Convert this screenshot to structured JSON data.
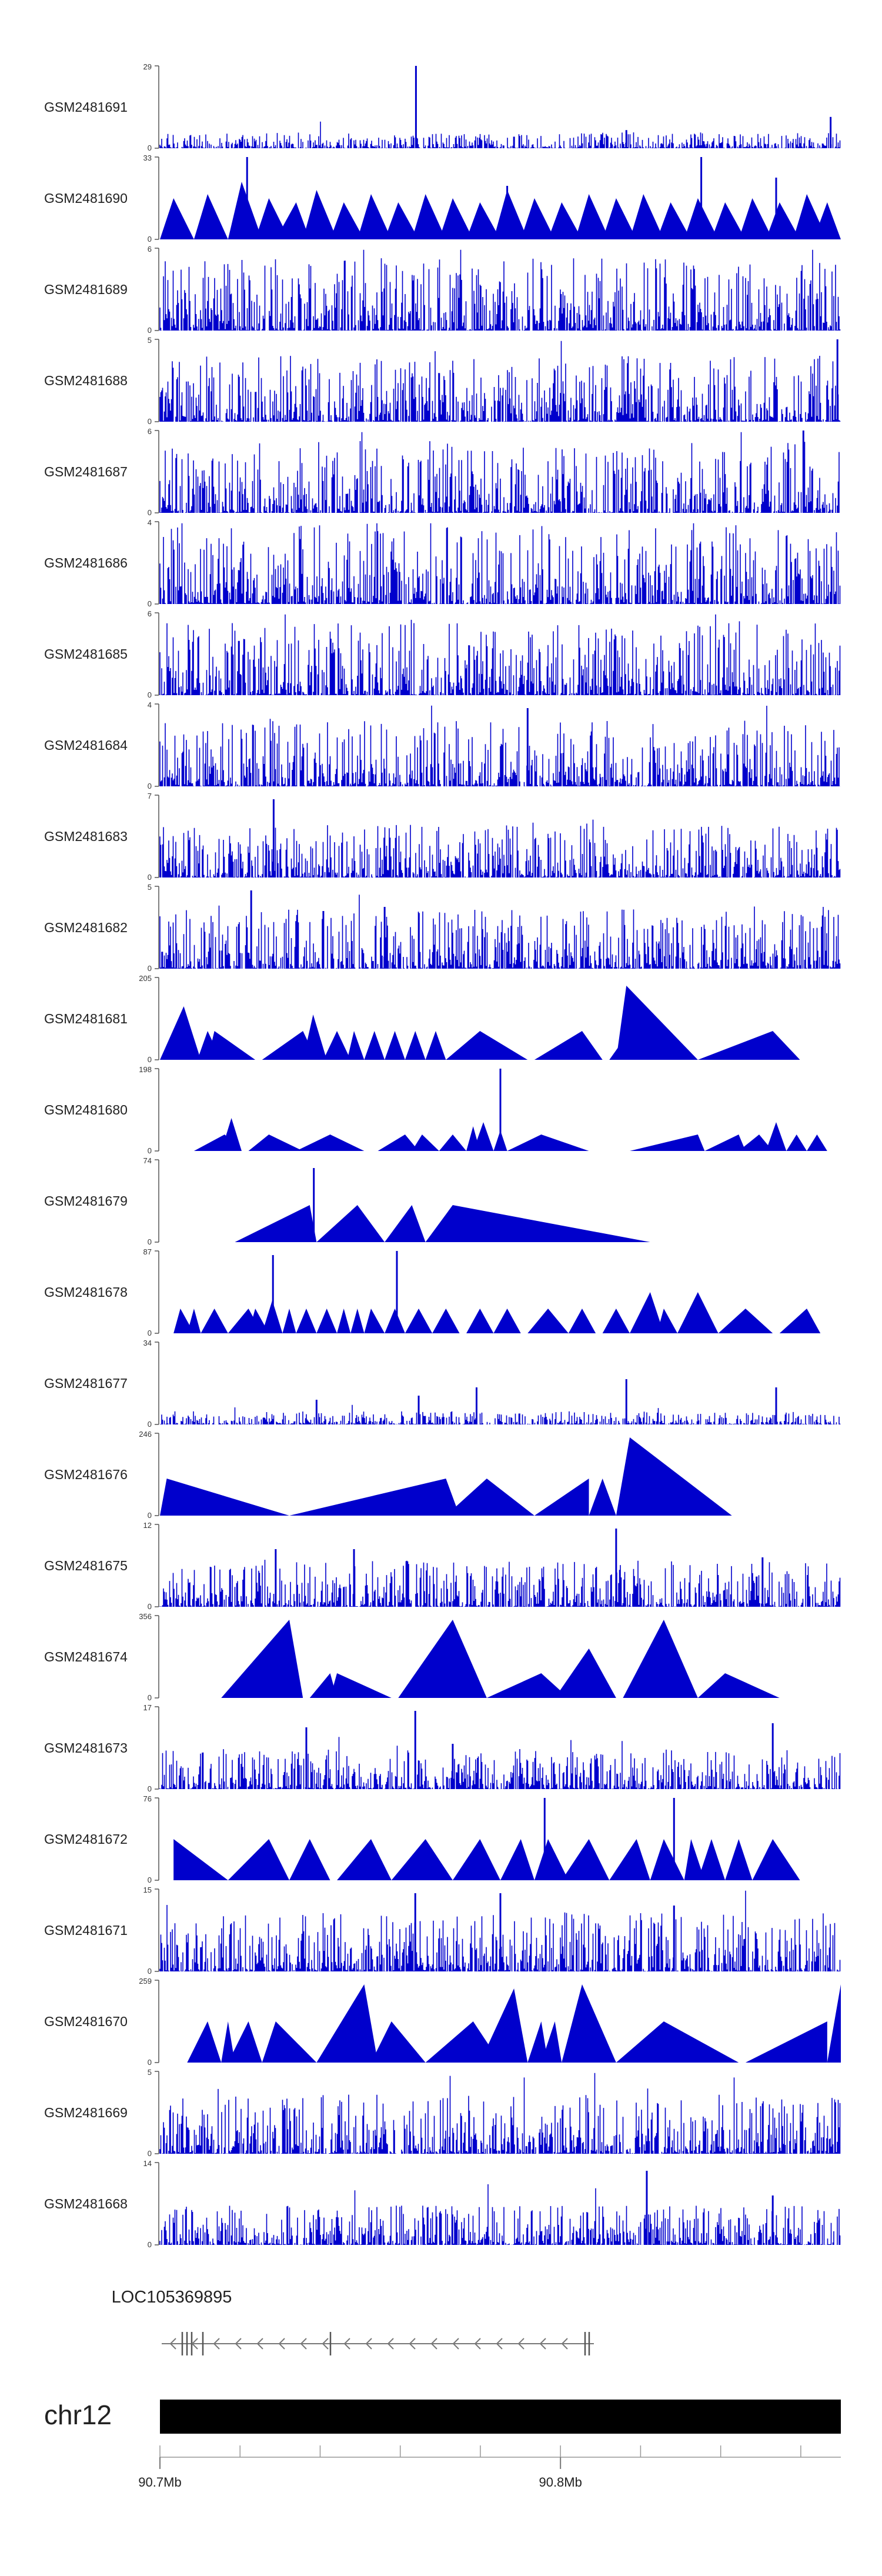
{
  "chart_data": {
    "type": "area",
    "title": "",
    "xlabel": "",
    "ylabel": "",
    "xlim_mb": [
      90.7,
      90.87
    ],
    "tracks": [
      {
        "name": "GSM2481691",
        "ymax": "29",
        "ymin": "0",
        "style": "dense",
        "peak_frac": 0.12,
        "spikes": [
          {
            "x": 0.376,
            "v": 1.0
          },
          {
            "x": 0.685,
            "v": 0.22
          },
          {
            "x": 0.985,
            "v": 0.38
          },
          {
            "x": 0.52,
            "v": 0.14
          }
        ]
      },
      {
        "name": "GSM2481690",
        "ymax": "33",
        "ymin": "0",
        "style": "tri",
        "peaks": [
          [
            0.0,
            0.02,
            0.05,
            0.5
          ],
          [
            0.05,
            0.07,
            0.1,
            0.55
          ],
          [
            0.1,
            0.12,
            0.15,
            0.7
          ],
          [
            0.14,
            0.16,
            0.19,
            0.5
          ],
          [
            0.17,
            0.2,
            0.22,
            0.45
          ],
          [
            0.21,
            0.23,
            0.26,
            0.6
          ],
          [
            0.25,
            0.27,
            0.3,
            0.45
          ],
          [
            0.29,
            0.31,
            0.34,
            0.55
          ],
          [
            0.33,
            0.35,
            0.38,
            0.45
          ],
          [
            0.37,
            0.39,
            0.42,
            0.55
          ],
          [
            0.41,
            0.43,
            0.46,
            0.5
          ],
          [
            0.45,
            0.47,
            0.5,
            0.45
          ],
          [
            0.49,
            0.51,
            0.54,
            0.6
          ],
          [
            0.53,
            0.55,
            0.58,
            0.5
          ],
          [
            0.57,
            0.59,
            0.62,
            0.45
          ],
          [
            0.61,
            0.63,
            0.66,
            0.55
          ],
          [
            0.65,
            0.67,
            0.7,
            0.5
          ],
          [
            0.69,
            0.71,
            0.74,
            0.55
          ],
          [
            0.73,
            0.75,
            0.78,
            0.45
          ],
          [
            0.77,
            0.79,
            0.82,
            0.5
          ],
          [
            0.81,
            0.83,
            0.86,
            0.45
          ],
          [
            0.85,
            0.87,
            0.9,
            0.5
          ],
          [
            0.89,
            0.91,
            0.94,
            0.45
          ],
          [
            0.93,
            0.95,
            0.98,
            0.55
          ],
          [
            0.96,
            0.98,
            1.0,
            0.45
          ]
        ],
        "spikes": [
          {
            "x": 0.128,
            "v": 1.0
          },
          {
            "x": 0.51,
            "v": 0.65
          },
          {
            "x": 0.795,
            "v": 1.0
          },
          {
            "x": 0.905,
            "v": 0.75
          }
        ]
      },
      {
        "name": "GSM2481689",
        "ymax": "6",
        "ymin": "0",
        "style": "dense",
        "peak_frac": 0.55,
        "spikes": []
      },
      {
        "name": "GSM2481688",
        "ymax": "5",
        "ymin": "0",
        "style": "dense",
        "peak_frac": 0.5,
        "spikes": [
          {
            "x": 0.995,
            "v": 1.0
          }
        ]
      },
      {
        "name": "GSM2481687",
        "ymax": "6",
        "ymin": "0",
        "style": "dense",
        "peak_frac": 0.55,
        "spikes": [
          {
            "x": 0.945,
            "v": 1.0
          }
        ]
      },
      {
        "name": "GSM2481686",
        "ymax": "4",
        "ymin": "0",
        "style": "dense",
        "peak_frac": 0.6,
        "spikes": []
      },
      {
        "name": "GSM2481685",
        "ymax": "6",
        "ymin": "0",
        "style": "dense",
        "peak_frac": 0.55,
        "spikes": []
      },
      {
        "name": "GSM2481684",
        "ymax": "4",
        "ymin": "0",
        "style": "dense",
        "peak_frac": 0.5,
        "spikes": [
          {
            "x": 0.54,
            "v": 0.95
          }
        ]
      },
      {
        "name": "GSM2481683",
        "ymax": "7",
        "ymin": "0",
        "style": "dense",
        "peak_frac": 0.4,
        "spikes": [
          {
            "x": 0.167,
            "v": 0.95
          }
        ]
      },
      {
        "name": "GSM2481682",
        "ymax": "5",
        "ymin": "0",
        "style": "dense",
        "peak_frac": 0.45,
        "spikes": [
          {
            "x": 0.134,
            "v": 0.95
          },
          {
            "x": 0.24,
            "v": 0.7
          },
          {
            "x": 0.33,
            "v": 0.75
          }
        ]
      },
      {
        "name": "GSM2481681",
        "ymax": "205",
        "ymin": "0",
        "style": "tri",
        "peaks": [
          [
            0.0,
            0.035,
            0.06,
            0.65
          ],
          [
            0.055,
            0.07,
            0.09,
            0.35
          ],
          [
            0.07,
            0.08,
            0.14,
            0.35
          ],
          [
            0.15,
            0.21,
            0.23,
            0.35
          ],
          [
            0.21,
            0.225,
            0.245,
            0.55
          ],
          [
            0.24,
            0.26,
            0.28,
            0.35
          ],
          [
            0.275,
            0.285,
            0.3,
            0.35
          ],
          [
            0.3,
            0.315,
            0.33,
            0.35
          ],
          [
            0.33,
            0.345,
            0.36,
            0.35
          ],
          [
            0.36,
            0.375,
            0.39,
            0.35
          ],
          [
            0.39,
            0.405,
            0.42,
            0.35
          ],
          [
            0.42,
            0.47,
            0.54,
            0.35
          ],
          [
            0.55,
            0.62,
            0.65,
            0.35
          ],
          [
            0.66,
            0.69,
            0.72,
            0.35
          ],
          [
            0.67,
            0.685,
            0.79,
            0.9
          ],
          [
            0.79,
            0.9,
            0.94,
            0.35
          ]
        ],
        "spikes": []
      },
      {
        "name": "GSM2481680",
        "ymax": "198",
        "ymin": "0",
        "style": "tri",
        "peaks": [
          [
            0.05,
            0.095,
            0.12,
            0.2
          ],
          [
            0.09,
            0.105,
            0.12,
            0.4
          ],
          [
            0.13,
            0.16,
            0.21,
            0.2
          ],
          [
            0.2,
            0.25,
            0.3,
            0.2
          ],
          [
            0.32,
            0.36,
            0.38,
            0.2
          ],
          [
            0.37,
            0.385,
            0.41,
            0.2
          ],
          [
            0.41,
            0.43,
            0.45,
            0.2
          ],
          [
            0.45,
            0.46,
            0.47,
            0.3
          ],
          [
            0.46,
            0.475,
            0.49,
            0.35
          ],
          [
            0.49,
            0.5,
            0.51,
            0.25
          ],
          [
            0.51,
            0.56,
            0.63,
            0.2
          ],
          [
            0.69,
            0.79,
            0.8,
            0.2
          ],
          [
            0.8,
            0.85,
            0.86,
            0.2
          ],
          [
            0.85,
            0.88,
            0.9,
            0.2
          ],
          [
            0.89,
            0.905,
            0.92,
            0.35
          ],
          [
            0.92,
            0.935,
            0.95,
            0.2
          ],
          [
            0.95,
            0.965,
            0.98,
            0.2
          ]
        ],
        "spikes": [
          {
            "x": 0.5,
            "v": 1.0
          }
        ]
      },
      {
        "name": "GSM2481679",
        "ymax": "74",
        "ymin": "0",
        "style": "tri",
        "peaks": [
          [
            0.11,
            0.22,
            0.23,
            0.45
          ],
          [
            0.23,
            0.29,
            0.33,
            0.45
          ],
          [
            0.33,
            0.37,
            0.39,
            0.45
          ],
          [
            0.39,
            0.43,
            0.72,
            0.45
          ]
        ],
        "spikes": [
          {
            "x": 0.226,
            "v": 0.9
          }
        ]
      },
      {
        "name": "GSM2481678",
        "ymax": "87",
        "ymin": "0",
        "style": "tri",
        "peaks": [
          [
            0.02,
            0.03,
            0.05,
            0.3
          ],
          [
            0.04,
            0.05,
            0.06,
            0.3
          ],
          [
            0.06,
            0.08,
            0.1,
            0.3
          ],
          [
            0.1,
            0.13,
            0.15,
            0.3
          ],
          [
            0.13,
            0.14,
            0.16,
            0.3
          ],
          [
            0.15,
            0.165,
            0.18,
            0.4
          ],
          [
            0.18,
            0.19,
            0.2,
            0.3
          ],
          [
            0.2,
            0.215,
            0.23,
            0.3
          ],
          [
            0.23,
            0.245,
            0.26,
            0.3
          ],
          [
            0.26,
            0.27,
            0.28,
            0.3
          ],
          [
            0.28,
            0.29,
            0.3,
            0.3
          ],
          [
            0.3,
            0.31,
            0.33,
            0.3
          ],
          [
            0.33,
            0.345,
            0.36,
            0.3
          ],
          [
            0.36,
            0.38,
            0.4,
            0.3
          ],
          [
            0.4,
            0.42,
            0.44,
            0.3
          ],
          [
            0.45,
            0.47,
            0.49,
            0.3
          ],
          [
            0.49,
            0.51,
            0.53,
            0.3
          ],
          [
            0.54,
            0.57,
            0.6,
            0.3
          ],
          [
            0.6,
            0.62,
            0.64,
            0.3
          ],
          [
            0.65,
            0.67,
            0.69,
            0.3
          ],
          [
            0.69,
            0.72,
            0.74,
            0.5
          ],
          [
            0.73,
            0.74,
            0.76,
            0.3
          ],
          [
            0.76,
            0.79,
            0.82,
            0.5
          ],
          [
            0.82,
            0.86,
            0.9,
            0.3
          ],
          [
            0.91,
            0.95,
            0.97,
            0.3
          ]
        ],
        "spikes": [
          {
            "x": 0.166,
            "v": 0.95
          },
          {
            "x": 0.348,
            "v": 1.0
          }
        ]
      },
      {
        "name": "GSM2481677",
        "ymax": "34",
        "ymin": "0",
        "style": "dense",
        "peak_frac": 0.1,
        "spikes": [
          {
            "x": 0.23,
            "v": 0.3
          },
          {
            "x": 0.38,
            "v": 0.35
          },
          {
            "x": 0.465,
            "v": 0.45
          },
          {
            "x": 0.685,
            "v": 0.55
          },
          {
            "x": 0.905,
            "v": 0.45
          }
        ]
      },
      {
        "name": "GSM2481676",
        "ymax": "246",
        "ymin": "0",
        "style": "tri",
        "peaks": [
          [
            0.0,
            0.01,
            0.19,
            0.45
          ],
          [
            0.19,
            0.42,
            0.44,
            0.45
          ],
          [
            0.42,
            0.48,
            0.55,
            0.45
          ],
          [
            0.55,
            0.63,
            0.63,
            0.45
          ],
          [
            0.63,
            0.65,
            0.67,
            0.45
          ],
          [
            0.67,
            0.69,
            0.84,
            0.95
          ]
        ],
        "spikes": []
      },
      {
        "name": "GSM2481675",
        "ymax": "12",
        "ymin": "0",
        "style": "dense",
        "peak_frac": 0.35,
        "spikes": [
          {
            "x": 0.67,
            "v": 0.95
          },
          {
            "x": 0.17,
            "v": 0.7
          },
          {
            "x": 0.285,
            "v": 0.7
          },
          {
            "x": 0.885,
            "v": 0.6
          }
        ]
      },
      {
        "name": "GSM2481674",
        "ymax": "356",
        "ymin": "0",
        "style": "tri",
        "peaks": [
          [
            0.09,
            0.19,
            0.21,
            0.95
          ],
          [
            0.22,
            0.25,
            0.26,
            0.3
          ],
          [
            0.25,
            0.26,
            0.34,
            0.3
          ],
          [
            0.35,
            0.43,
            0.48,
            0.95
          ],
          [
            0.48,
            0.56,
            0.6,
            0.3
          ],
          [
            0.58,
            0.63,
            0.67,
            0.6
          ],
          [
            0.68,
            0.74,
            0.79,
            0.95
          ],
          [
            0.79,
            0.83,
            0.91,
            0.3
          ]
        ],
        "spikes": []
      },
      {
        "name": "GSM2481673",
        "ymax": "17",
        "ymin": "0",
        "style": "dense",
        "peak_frac": 0.3,
        "spikes": [
          {
            "x": 0.215,
            "v": 0.75
          },
          {
            "x": 0.375,
            "v": 0.95
          },
          {
            "x": 0.43,
            "v": 0.55
          },
          {
            "x": 0.9,
            "v": 0.8
          }
        ]
      },
      {
        "name": "GSM2481672",
        "ymax": "76",
        "ymin": "0",
        "style": "tri",
        "peaks": [
          [
            0.02,
            0.02,
            0.1,
            0.5
          ],
          [
            0.1,
            0.16,
            0.19,
            0.5
          ],
          [
            0.19,
            0.22,
            0.25,
            0.5
          ],
          [
            0.26,
            0.31,
            0.34,
            0.5
          ],
          [
            0.34,
            0.39,
            0.43,
            0.5
          ],
          [
            0.43,
            0.47,
            0.5,
            0.5
          ],
          [
            0.5,
            0.53,
            0.55,
            0.5
          ],
          [
            0.55,
            0.57,
            0.6,
            0.5
          ],
          [
            0.59,
            0.63,
            0.66,
            0.5
          ],
          [
            0.66,
            0.7,
            0.72,
            0.5
          ],
          [
            0.72,
            0.74,
            0.77,
            0.5
          ],
          [
            0.77,
            0.78,
            0.8,
            0.5
          ],
          [
            0.79,
            0.81,
            0.83,
            0.5
          ],
          [
            0.83,
            0.85,
            0.87,
            0.5
          ],
          [
            0.87,
            0.9,
            0.94,
            0.5
          ]
        ],
        "spikes": [
          {
            "x": 0.565,
            "v": 1.0
          },
          {
            "x": 0.755,
            "v": 1.0
          }
        ]
      },
      {
        "name": "GSM2481671",
        "ymax": "15",
        "ymin": "0",
        "style": "dense",
        "peak_frac": 0.45,
        "spikes": [
          {
            "x": 0.375,
            "v": 0.95
          },
          {
            "x": 0.5,
            "v": 0.95
          },
          {
            "x": 0.755,
            "v": 0.8
          }
        ]
      },
      {
        "name": "GSM2481670",
        "ymax": "259",
        "ymin": "0",
        "style": "tri",
        "peaks": [
          [
            0.04,
            0.07,
            0.09,
            0.5
          ],
          [
            0.09,
            0.1,
            0.11,
            0.5
          ],
          [
            0.1,
            0.13,
            0.15,
            0.5
          ],
          [
            0.15,
            0.17,
            0.23,
            0.5
          ],
          [
            0.23,
            0.3,
            0.32,
            0.95
          ],
          [
            0.31,
            0.34,
            0.39,
            0.5
          ],
          [
            0.39,
            0.46,
            0.5,
            0.5
          ],
          [
            0.47,
            0.52,
            0.54,
            0.9
          ],
          [
            0.54,
            0.56,
            0.57,
            0.5
          ],
          [
            0.56,
            0.58,
            0.59,
            0.5
          ],
          [
            0.59,
            0.62,
            0.67,
            0.95
          ],
          [
            0.67,
            0.74,
            0.85,
            0.5
          ],
          [
            0.86,
            0.98,
            0.98,
            0.5
          ],
          [
            0.98,
            1.0,
            1.0,
            0.95
          ]
        ],
        "spikes": []
      },
      {
        "name": "GSM2481669",
        "ymax": "5",
        "ymin": "0",
        "style": "dense",
        "peak_frac": 0.45,
        "spikes": []
      },
      {
        "name": "GSM2481668",
        "ymax": "14",
        "ymin": "0",
        "style": "dense",
        "peak_frac": 0.3,
        "spikes": [
          {
            "x": 0.715,
            "v": 0.9
          },
          {
            "x": 0.9,
            "v": 0.6
          }
        ]
      }
    ],
    "gene": {
      "label": "LOC105369895",
      "strand": "-"
    },
    "chromosome": "chr12",
    "axis": {
      "tick_labels": [
        "90.7Mb",
        "90.8Mb"
      ],
      "tick_values_mb": [
        90.7,
        90.8
      ],
      "minor_tick_values_mb": [
        90.7,
        90.72,
        90.74,
        90.76,
        90.78,
        90.8,
        90.82,
        90.84,
        90.86
      ]
    },
    "colors": {
      "signal": "#0000cc",
      "axis": "#555555",
      "ideogram": "#000000",
      "gene": "#777777"
    }
  }
}
